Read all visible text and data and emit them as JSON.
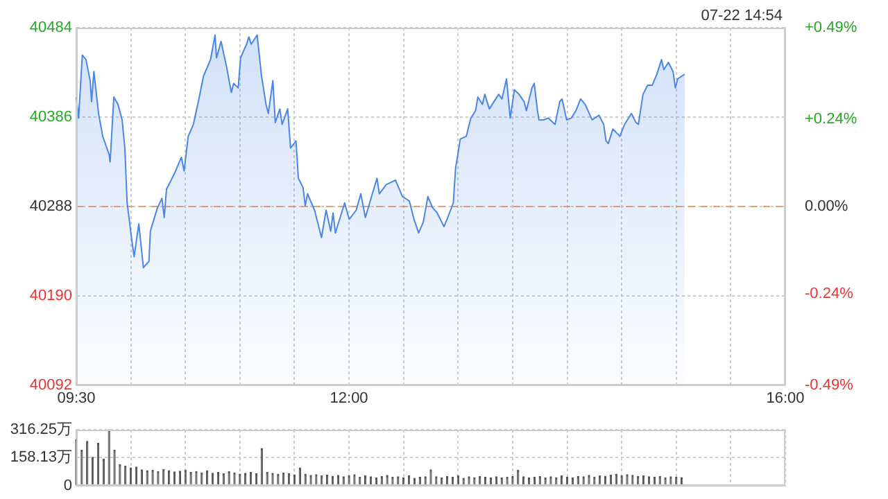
{
  "chart_data": [
    {
      "type": "area",
      "color": "#4a86e8",
      "x": [
        9.5,
        9.521,
        9.555,
        9.589,
        9.627,
        9.64,
        9.661,
        9.704,
        9.742,
        9.801,
        9.81,
        9.844,
        9.882,
        9.92,
        9.945,
        9.966,
        10.009,
        10.03,
        10.073,
        10.115,
        10.166,
        10.179,
        10.242,
        10.285,
        10.306,
        10.327,
        10.403,
        10.463,
        10.488,
        10.526,
        10.573,
        10.624,
        10.666,
        10.73,
        10.772,
        10.785,
        10.827,
        10.878,
        10.921,
        10.942,
        10.984,
        11.006,
        11.061,
        11.082,
        11.103,
        11.158,
        11.196,
        11.239,
        11.26,
        11.302,
        11.324,
        11.366,
        11.387,
        11.438,
        11.464,
        11.514,
        11.536,
        11.578,
        11.599,
        11.62,
        11.684,
        11.748,
        11.79,
        11.832,
        11.854,
        11.875,
        11.96,
        12.002,
        12.066,
        12.108,
        12.15,
        12.214,
        12.257,
        12.278,
        12.341,
        12.426,
        12.49,
        12.553,
        12.596,
        12.638,
        12.681,
        12.723,
        12.765,
        12.808,
        12.871,
        12.905,
        12.956,
        12.977,
        13.02,
        13.075,
        13.117,
        13.16,
        13.181,
        13.223,
        13.245,
        13.287,
        13.329,
        13.372,
        13.402,
        13.444,
        13.478,
        13.516,
        13.559,
        13.605,
        13.626,
        13.677,
        13.698,
        13.728,
        13.741,
        13.783,
        13.826,
        13.889,
        13.932,
        13.953,
        13.995,
        14.038,
        14.08,
        14.123,
        14.165,
        14.229,
        14.292,
        14.335,
        14.356,
        14.377,
        14.419,
        14.483,
        14.526,
        14.589,
        14.631,
        14.653,
        14.695,
        14.737,
        14.78,
        14.822,
        14.865,
        14.886,
        14.928,
        14.971,
        14.992,
        15.013,
        15.077
      ],
      "values": [
        40408,
        40385,
        40454,
        40449,
        40426,
        40403,
        40436,
        40390,
        40365,
        40345,
        40337,
        40408,
        40400,
        40383,
        40352,
        40292,
        40251,
        40233,
        40269,
        40221,
        40228,
        40261,
        40286,
        40297,
        40276,
        40307,
        40325,
        40342,
        40327,
        40365,
        40378,
        40406,
        40431,
        40449,
        40476,
        40451,
        40469,
        40441,
        40413,
        40423,
        40418,
        40451,
        40466,
        40474,
        40466,
        40476,
        40433,
        40400,
        40390,
        40426,
        40380,
        40395,
        40378,
        40395,
        40352,
        40360,
        40319,
        40309,
        40289,
        40302,
        40284,
        40254,
        40284,
        40261,
        40281,
        40259,
        40292,
        40274,
        40284,
        40302,
        40276,
        40302,
        40319,
        40302,
        40312,
        40317,
        40299,
        40294,
        40274,
        40259,
        40271,
        40299,
        40287,
        40281,
        40266,
        40276,
        40292,
        40330,
        40362,
        40365,
        40385,
        40393,
        40408,
        40400,
        40411,
        40395,
        40403,
        40411,
        40406,
        40428,
        40385,
        40416,
        40411,
        40403,
        40393,
        40418,
        40423,
        40393,
        40383,
        40383,
        40385,
        40378,
        40403,
        40406,
        40383,
        40385,
        40393,
        40406,
        40400,
        40383,
        40388,
        40378,
        40360,
        40357,
        40373,
        40365,
        40378,
        40390,
        40380,
        40378,
        40411,
        40421,
        40421,
        40433,
        40449,
        40438,
        40446,
        40436,
        40418,
        40428,
        40433
      ],
      "xlim": [
        9.5,
        16
      ],
      "xticks": [
        {
          "value": 9.5,
          "label": "09:30"
        },
        {
          "value": 10,
          "label": null
        },
        {
          "value": 10.5,
          "label": null
        },
        {
          "value": 11,
          "label": null
        },
        {
          "value": 11.5,
          "label": null
        },
        {
          "value": 12,
          "label": "12:00"
        },
        {
          "value": 12.5,
          "label": null
        },
        {
          "value": 13,
          "label": null
        },
        {
          "value": 13.5,
          "label": null
        },
        {
          "value": 14,
          "label": null
        },
        {
          "value": 14.5,
          "label": null
        },
        {
          "value": 15,
          "label": null
        },
        {
          "value": 15.5,
          "label": null
        },
        {
          "value": 16,
          "label": "16:00"
        }
      ],
      "ylim": [
        40092,
        40484
      ],
      "yticks": [
        40092,
        40190,
        40288,
        40386,
        40484
      ],
      "y2lim": [
        -0.49,
        0.49
      ],
      "y2ticks": [
        {
          "value": -0.49,
          "label": "-0.49%"
        },
        {
          "value": -0.24,
          "label": "-0.24%"
        },
        {
          "value": 0,
          "label": "0.00%"
        },
        {
          "value": 0.24,
          "label": "+0.24%"
        },
        {
          "value": 0.49,
          "label": "+0.49%"
        }
      ],
      "ref_lines": [
        {
          "axis": "y",
          "value": 40288,
          "color": "#e8a070",
          "line_style": "dashed"
        }
      ],
      "annotations": [
        "07-22 14:54"
      ],
      "grid": true,
      "legend": false,
      "marker": "none"
    },
    {
      "type": "bar",
      "color": "#555555",
      "x": [
        9.5,
        9.55,
        9.6,
        9.65,
        9.7,
        9.75,
        9.8,
        9.85,
        9.9,
        9.95,
        10,
        10.05,
        10.1,
        10.15,
        10.2,
        10.25,
        10.3,
        10.35,
        10.4,
        10.45,
        10.5,
        10.55,
        10.6,
        10.65,
        10.7,
        10.75,
        10.8,
        10.85,
        10.9,
        10.95,
        11,
        11.05,
        11.1,
        11.15,
        11.2,
        11.25,
        11.3,
        11.35,
        11.4,
        11.45,
        11.5,
        11.55,
        11.6,
        11.65,
        11.7,
        11.75,
        11.8,
        11.85,
        11.9,
        11.95,
        12,
        12.05,
        12.1,
        12.15,
        12.2,
        12.25,
        12.3,
        12.35,
        12.4,
        12.45,
        12.5,
        12.55,
        12.6,
        12.65,
        12.7,
        12.75,
        12.8,
        12.85,
        12.9,
        12.95,
        13,
        13.05,
        13.1,
        13.15,
        13.2,
        13.25,
        13.3,
        13.35,
        13.4,
        13.45,
        13.5,
        13.55,
        13.6,
        13.65,
        13.7,
        13.75,
        13.8,
        13.85,
        13.9,
        13.95,
        14,
        14.05,
        14.1,
        14.15,
        14.2,
        14.25,
        14.3,
        14.35,
        14.4,
        14.45,
        14.5,
        14.55,
        14.6,
        14.65,
        14.7,
        14.75,
        14.8,
        14.85,
        14.9,
        14.95,
        15,
        15.05
      ],
      "values": [
        260,
        200,
        250,
        160,
        240,
        150,
        316,
        200,
        120,
        110,
        100,
        105,
        90,
        85,
        88,
        80,
        92,
        85,
        78,
        82,
        88,
        75,
        80,
        72,
        85,
        70,
        75,
        68,
        80,
        72,
        65,
        70,
        75,
        68,
        210,
        75,
        70,
        65,
        72,
        68,
        60,
        100,
        65,
        58,
        62,
        55,
        60,
        52,
        58,
        50,
        55,
        62,
        48,
        55,
        50,
        45,
        52,
        58,
        48,
        50,
        45,
        55,
        42,
        48,
        50,
        90,
        50,
        45,
        52,
        48,
        55,
        42,
        50,
        46,
        52,
        48,
        45,
        50,
        44,
        48,
        52,
        88,
        50,
        45,
        48,
        52,
        44,
        50,
        46,
        55,
        48,
        45,
        52,
        50,
        58,
        48,
        55,
        52,
        60,
        65,
        55,
        62,
        58,
        52,
        55,
        50,
        48,
        52,
        45,
        50,
        48,
        46
      ],
      "xlim": [
        9.5,
        16
      ],
      "xticks": [
        9.5,
        10,
        10.5,
        11,
        11.5,
        12,
        12.5,
        13,
        13.5,
        14,
        14.5,
        15,
        15.5,
        16
      ],
      "ylim": [
        0,
        316.25
      ],
      "yticks": [
        0,
        {
          "value": 158.13,
          "label": "158.13万"
        },
        {
          "value": 316.25,
          "label": "316.25万"
        }
      ],
      "tick_labels": "y",
      "grid": true,
      "legend": false
    }
  ]
}
